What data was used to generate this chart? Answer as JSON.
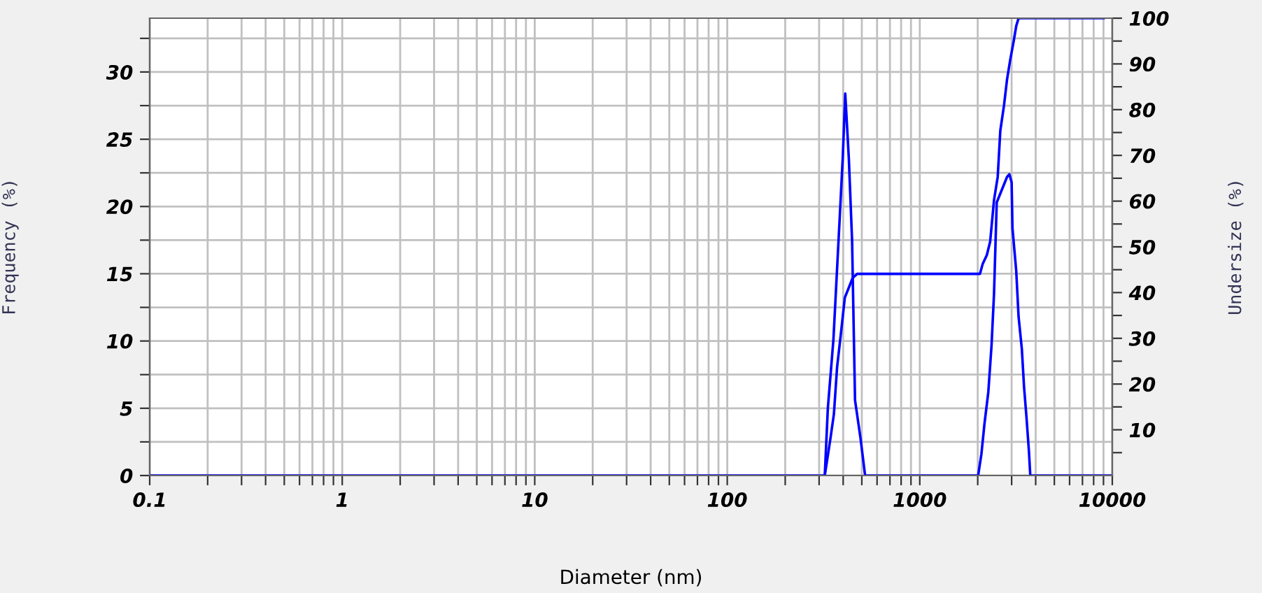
{
  "chart_data": {
    "type": "line",
    "xlabel": "Diameter (nm)",
    "ylabel": "Frequency (%)",
    "y2label": "Undersize (%)",
    "log": "x",
    "grid": true,
    "marker": "none",
    "line_style": "solid",
    "xlim": [
      0.1,
      10000
    ],
    "xticks": [
      0.1,
      {
        "value": 0.2,
        "label": null
      },
      {
        "value": 0.3,
        "label": null
      },
      {
        "value": 0.4,
        "label": null
      },
      {
        "value": 0.5,
        "label": null
      },
      {
        "value": 0.6,
        "label": null
      },
      {
        "value": 0.7,
        "label": null
      },
      {
        "value": 0.8,
        "label": null
      },
      {
        "value": 0.9,
        "label": null
      },
      1,
      {
        "value": 2,
        "label": null
      },
      {
        "value": 3,
        "label": null
      },
      {
        "value": 4,
        "label": null
      },
      {
        "value": 5,
        "label": null
      },
      {
        "value": 6,
        "label": null
      },
      {
        "value": 7,
        "label": null
      },
      {
        "value": 8,
        "label": null
      },
      {
        "value": 9,
        "label": null
      },
      10,
      {
        "value": 20,
        "label": null
      },
      {
        "value": 30,
        "label": null
      },
      {
        "value": 40,
        "label": null
      },
      {
        "value": 50,
        "label": null
      },
      {
        "value": 60,
        "label": null
      },
      {
        "value": 70,
        "label": null
      },
      {
        "value": 80,
        "label": null
      },
      {
        "value": 90,
        "label": null
      },
      100,
      {
        "value": 200,
        "label": null
      },
      {
        "value": 300,
        "label": null
      },
      {
        "value": 400,
        "label": null
      },
      {
        "value": 500,
        "label": null
      },
      {
        "value": 600,
        "label": null
      },
      {
        "value": 700,
        "label": null
      },
      {
        "value": 800,
        "label": null
      },
      {
        "value": 900,
        "label": null
      },
      1000,
      {
        "value": 2000,
        "label": null
      },
      {
        "value": 3000,
        "label": null
      },
      {
        "value": 4000,
        "label": null
      },
      {
        "value": 5000,
        "label": null
      },
      {
        "value": 6000,
        "label": null
      },
      {
        "value": 7000,
        "label": null
      },
      {
        "value": 8000,
        "label": null
      },
      {
        "value": 9000,
        "label": null
      },
      10000
    ],
    "ylim": [
      0,
      34
    ],
    "yticks": [
      0,
      {
        "value": 2.5,
        "label": null
      },
      5,
      {
        "value": 7.5,
        "label": null
      },
      10,
      {
        "value": 12.5,
        "label": null
      },
      15,
      {
        "value": 17.5,
        "label": null
      },
      20,
      {
        "value": 22.5,
        "label": null
      },
      25,
      {
        "value": 27.5,
        "label": null
      },
      30,
      {
        "value": 32.5,
        "label": null
      }
    ],
    "y2lim": [
      0,
      100
    ],
    "y2ticks": [
      {
        "value": 5,
        "label": null
      },
      10,
      {
        "value": 15,
        "label": null
      },
      20,
      {
        "value": 25,
        "label": null
      },
      30,
      {
        "value": 35,
        "label": null
      },
      40,
      {
        "value": 45,
        "label": null
      },
      50,
      {
        "value": 55,
        "label": null
      },
      60,
      {
        "value": 65,
        "label": null
      },
      70,
      {
        "value": 75,
        "label": null
      },
      80,
      {
        "value": 85,
        "label": null
      },
      90,
      {
        "value": 95,
        "label": null
      },
      100
    ],
    "series": [
      {
        "color": "#0000ff",
        "x": [
          0.1,
          321,
          333,
          356,
          383,
          398,
          410,
          428,
          445,
          461,
          492,
          520,
          2010,
          2090,
          2170,
          2270,
          2360,
          2430,
          2510,
          2840,
          2920,
          3000,
          3030,
          3170,
          3260,
          3390,
          3480,
          3580,
          3690,
          3750,
          10000
        ],
        "values": [
          0,
          0,
          5.0,
          10.1,
          18.9,
          23.6,
          28.4,
          23.6,
          17.5,
          5.6,
          2.8,
          0,
          0,
          1.6,
          3.9,
          6.2,
          9.7,
          13.5,
          20.3,
          22.2,
          22.4,
          21.8,
          18.4,
          15.2,
          11.8,
          9.4,
          6.6,
          4.4,
          1.8,
          0,
          0
        ]
      },
      {
        "color": "#0000ff",
        "axis": "y2",
        "x": [
          321,
          343,
          358,
          372,
          390,
          408,
          431,
          448,
          473,
          2055,
          2120,
          2230,
          2320,
          2430,
          2540,
          2620,
          2740,
          2840,
          2950,
          3070,
          3170,
          3260,
          9020
        ],
        "values": [
          0,
          7.9,
          13.4,
          23.7,
          31.3,
          38.9,
          41.4,
          43.2,
          44.1,
          44.1,
          46.2,
          48.2,
          51.1,
          60.2,
          65.3,
          75.4,
          81.0,
          86.6,
          90.9,
          94.8,
          98.3,
          100,
          100
        ]
      }
    ]
  }
}
